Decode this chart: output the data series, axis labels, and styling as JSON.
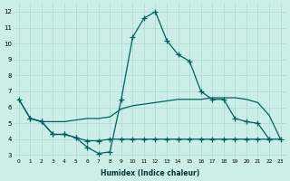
{
  "xlabel": "Humidex (Indice chaleur)",
  "bg_color": "#cceee8",
  "grid_color": "#aad8d0",
  "line_color": "#006060",
  "line1_y": [
    6.5,
    5.3,
    5.1,
    5.1,
    5.1,
    5.2,
    5.3,
    5.3,
    5.4,
    5.9,
    6.1,
    6.2,
    6.3,
    6.4,
    6.5,
    6.5,
    6.5,
    6.6,
    6.6,
    6.6,
    6.5,
    6.3,
    5.5,
    4.0
  ],
  "line2_y": [
    6.5,
    5.3,
    5.1,
    4.3,
    4.3,
    4.1,
    3.5,
    3.1,
    3.2,
    6.5,
    10.4,
    11.6,
    12.0,
    10.2,
    9.3,
    8.9,
    7.0,
    6.5,
    6.5,
    5.3,
    5.1,
    5.0,
    4.0,
    null
  ],
  "line2_markers_x": [
    0,
    1,
    2,
    3,
    4,
    5,
    6,
    7,
    8,
    9,
    10,
    11,
    12,
    13,
    14,
    15,
    16,
    17,
    18,
    19,
    20,
    21,
    22
  ],
  "line3_y": [
    null,
    5.3,
    5.1,
    4.3,
    4.3,
    4.1,
    3.9,
    3.9,
    4.0,
    4.0,
    4.0,
    4.0,
    4.0,
    4.0,
    4.0,
    4.0,
    4.0,
    4.0,
    4.0,
    4.0,
    4.0,
    4.0,
    4.0,
    4.0
  ],
  "ylim": [
    2.8,
    12.5
  ],
  "xlim": [
    -0.5,
    23.5
  ],
  "yticks": [
    3,
    4,
    5,
    6,
    7,
    8,
    9,
    10,
    11,
    12
  ],
  "xticks": [
    0,
    1,
    2,
    3,
    4,
    5,
    6,
    7,
    8,
    9,
    10,
    11,
    12,
    13,
    14,
    15,
    16,
    17,
    18,
    19,
    20,
    21,
    22,
    23
  ],
  "xtick_labels": [
    "0",
    "1",
    "2",
    "3",
    "4",
    "5",
    "6",
    "7",
    "8",
    "9",
    "10",
    "11",
    "12",
    "13",
    "14",
    "15",
    "16",
    "17",
    "18",
    "19",
    "20",
    "21",
    "22",
    "23"
  ]
}
